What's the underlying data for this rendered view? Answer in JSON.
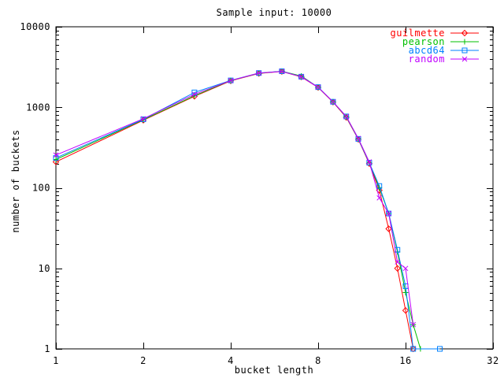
{
  "chart_data": {
    "type": "line",
    "title": "Sample input: 10000",
    "xlabel": "bucket length",
    "ylabel": "number of buckets",
    "x_scale": "log2",
    "y_scale": "log10",
    "xlim": [
      1,
      32
    ],
    "ylim": [
      1,
      10000
    ],
    "x_ticks": [
      1,
      2,
      4,
      8,
      16,
      32
    ],
    "y_ticks": [
      1,
      10,
      100,
      1000,
      10000
    ],
    "grid": false,
    "legend_position": "inside-top-right",
    "axis_color": "#000000",
    "background_color": "#ffffff",
    "series": [
      {
        "name": "guilmette",
        "color": "#ff0000",
        "marker": "diamond",
        "points": [
          [
            1,
            210
          ],
          [
            2,
            690
          ],
          [
            3,
            1370
          ],
          [
            4,
            2130
          ],
          [
            5,
            2630
          ],
          [
            6,
            2780
          ],
          [
            7,
            2380
          ],
          [
            8,
            1760
          ],
          [
            9,
            1160
          ],
          [
            10,
            750
          ],
          [
            11,
            400
          ],
          [
            12,
            200
          ],
          [
            13,
            93
          ],
          [
            14,
            31
          ],
          [
            15,
            10
          ],
          [
            16,
            3
          ],
          [
            17,
            1
          ]
        ]
      },
      {
        "name": "pearson",
        "color": "#00c000",
        "marker": "plus",
        "points": [
          [
            1,
            225
          ],
          [
            2,
            700
          ],
          [
            3,
            1390
          ],
          [
            4,
            2150
          ],
          [
            5,
            2650
          ],
          [
            6,
            2800
          ],
          [
            7,
            2450
          ],
          [
            8,
            1770
          ],
          [
            9,
            1170
          ],
          [
            10,
            760
          ],
          [
            11,
            405
          ],
          [
            12,
            205
          ],
          [
            13,
            100
          ],
          [
            14,
            48
          ],
          [
            15,
            16
          ],
          [
            16,
            5
          ],
          [
            17,
            2
          ],
          [
            18,
            1
          ]
        ]
      },
      {
        "name": "abcd64",
        "color": "#0080ff",
        "marker": "square",
        "points": [
          [
            1,
            235
          ],
          [
            2,
            710
          ],
          [
            3,
            1530
          ],
          [
            4,
            2160
          ],
          [
            5,
            2660
          ],
          [
            6,
            2800
          ],
          [
            7,
            2400
          ],
          [
            8,
            1780
          ],
          [
            9,
            1170
          ],
          [
            10,
            770
          ],
          [
            11,
            405
          ],
          [
            12,
            205
          ],
          [
            13,
            105
          ],
          [
            14,
            48
          ],
          [
            15,
            17
          ],
          [
            16,
            6
          ],
          [
            17,
            1
          ],
          [
            21,
            1
          ]
        ]
      },
      {
        "name": "random",
        "color": "#c000ff",
        "marker": "x",
        "points": [
          [
            1,
            255
          ],
          [
            2,
            720
          ],
          [
            3,
            1450
          ],
          [
            4,
            2150
          ],
          [
            5,
            2660
          ],
          [
            6,
            2790
          ],
          [
            7,
            2400
          ],
          [
            8,
            1770
          ],
          [
            9,
            1170
          ],
          [
            10,
            770
          ],
          [
            11,
            410
          ],
          [
            12,
            210
          ],
          [
            13,
            75
          ],
          [
            14,
            48
          ],
          [
            15,
            12
          ],
          [
            16,
            10
          ],
          [
            17,
            2
          ]
        ]
      }
    ]
  }
}
